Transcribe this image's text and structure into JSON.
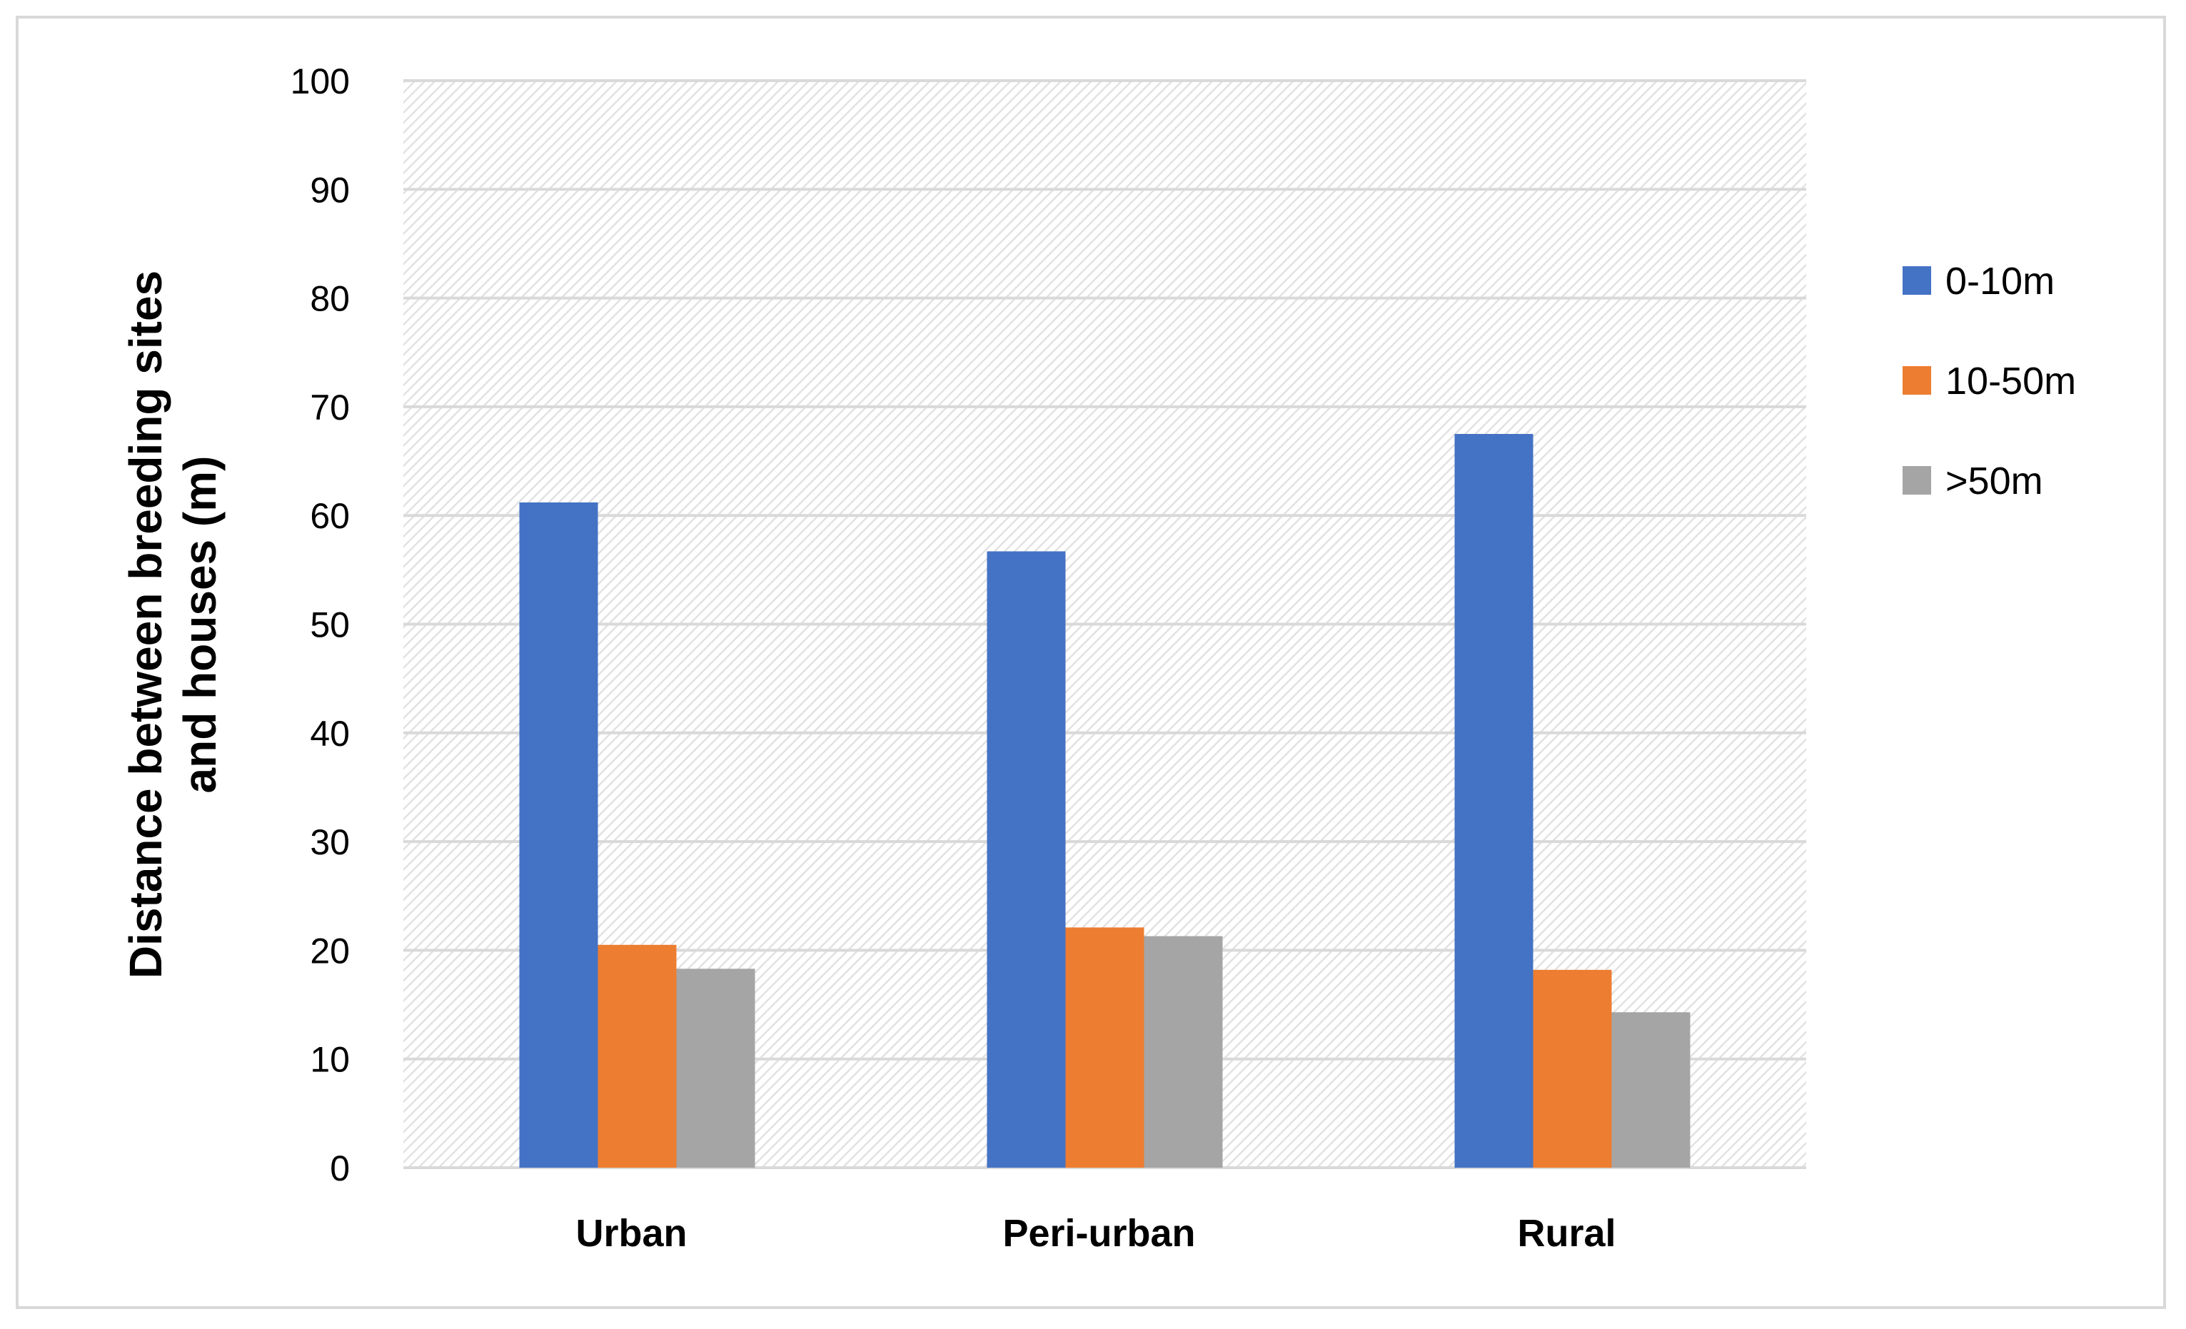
{
  "chart_data": {
    "type": "bar",
    "title": "",
    "xlabel": "",
    "ylabel": "Distance between breeding sites and houses (m)",
    "ylabel_lines": [
      "Distance between breeding sites",
      "and houses (m)"
    ],
    "ylim": [
      0,
      100
    ],
    "yticks": [
      0,
      10,
      20,
      30,
      40,
      50,
      60,
      70,
      80,
      90,
      100
    ],
    "categories": [
      "Urban",
      "Peri-urban",
      "Rural"
    ],
    "series": [
      {
        "name": "0-10m",
        "color": "#4472c4",
        "values": [
          61.2,
          56.7,
          67.5
        ]
      },
      {
        "name": "10-50m",
        "color": "#ed7d31",
        "values": [
          20.5,
          22.1,
          18.2
        ]
      },
      {
        "name": ">50m",
        "color": "#a5a5a5",
        "values": [
          18.3,
          21.3,
          14.3
        ]
      }
    ],
    "grid": true,
    "plot_background": "hatched-light-gray",
    "legend_position": "right"
  }
}
